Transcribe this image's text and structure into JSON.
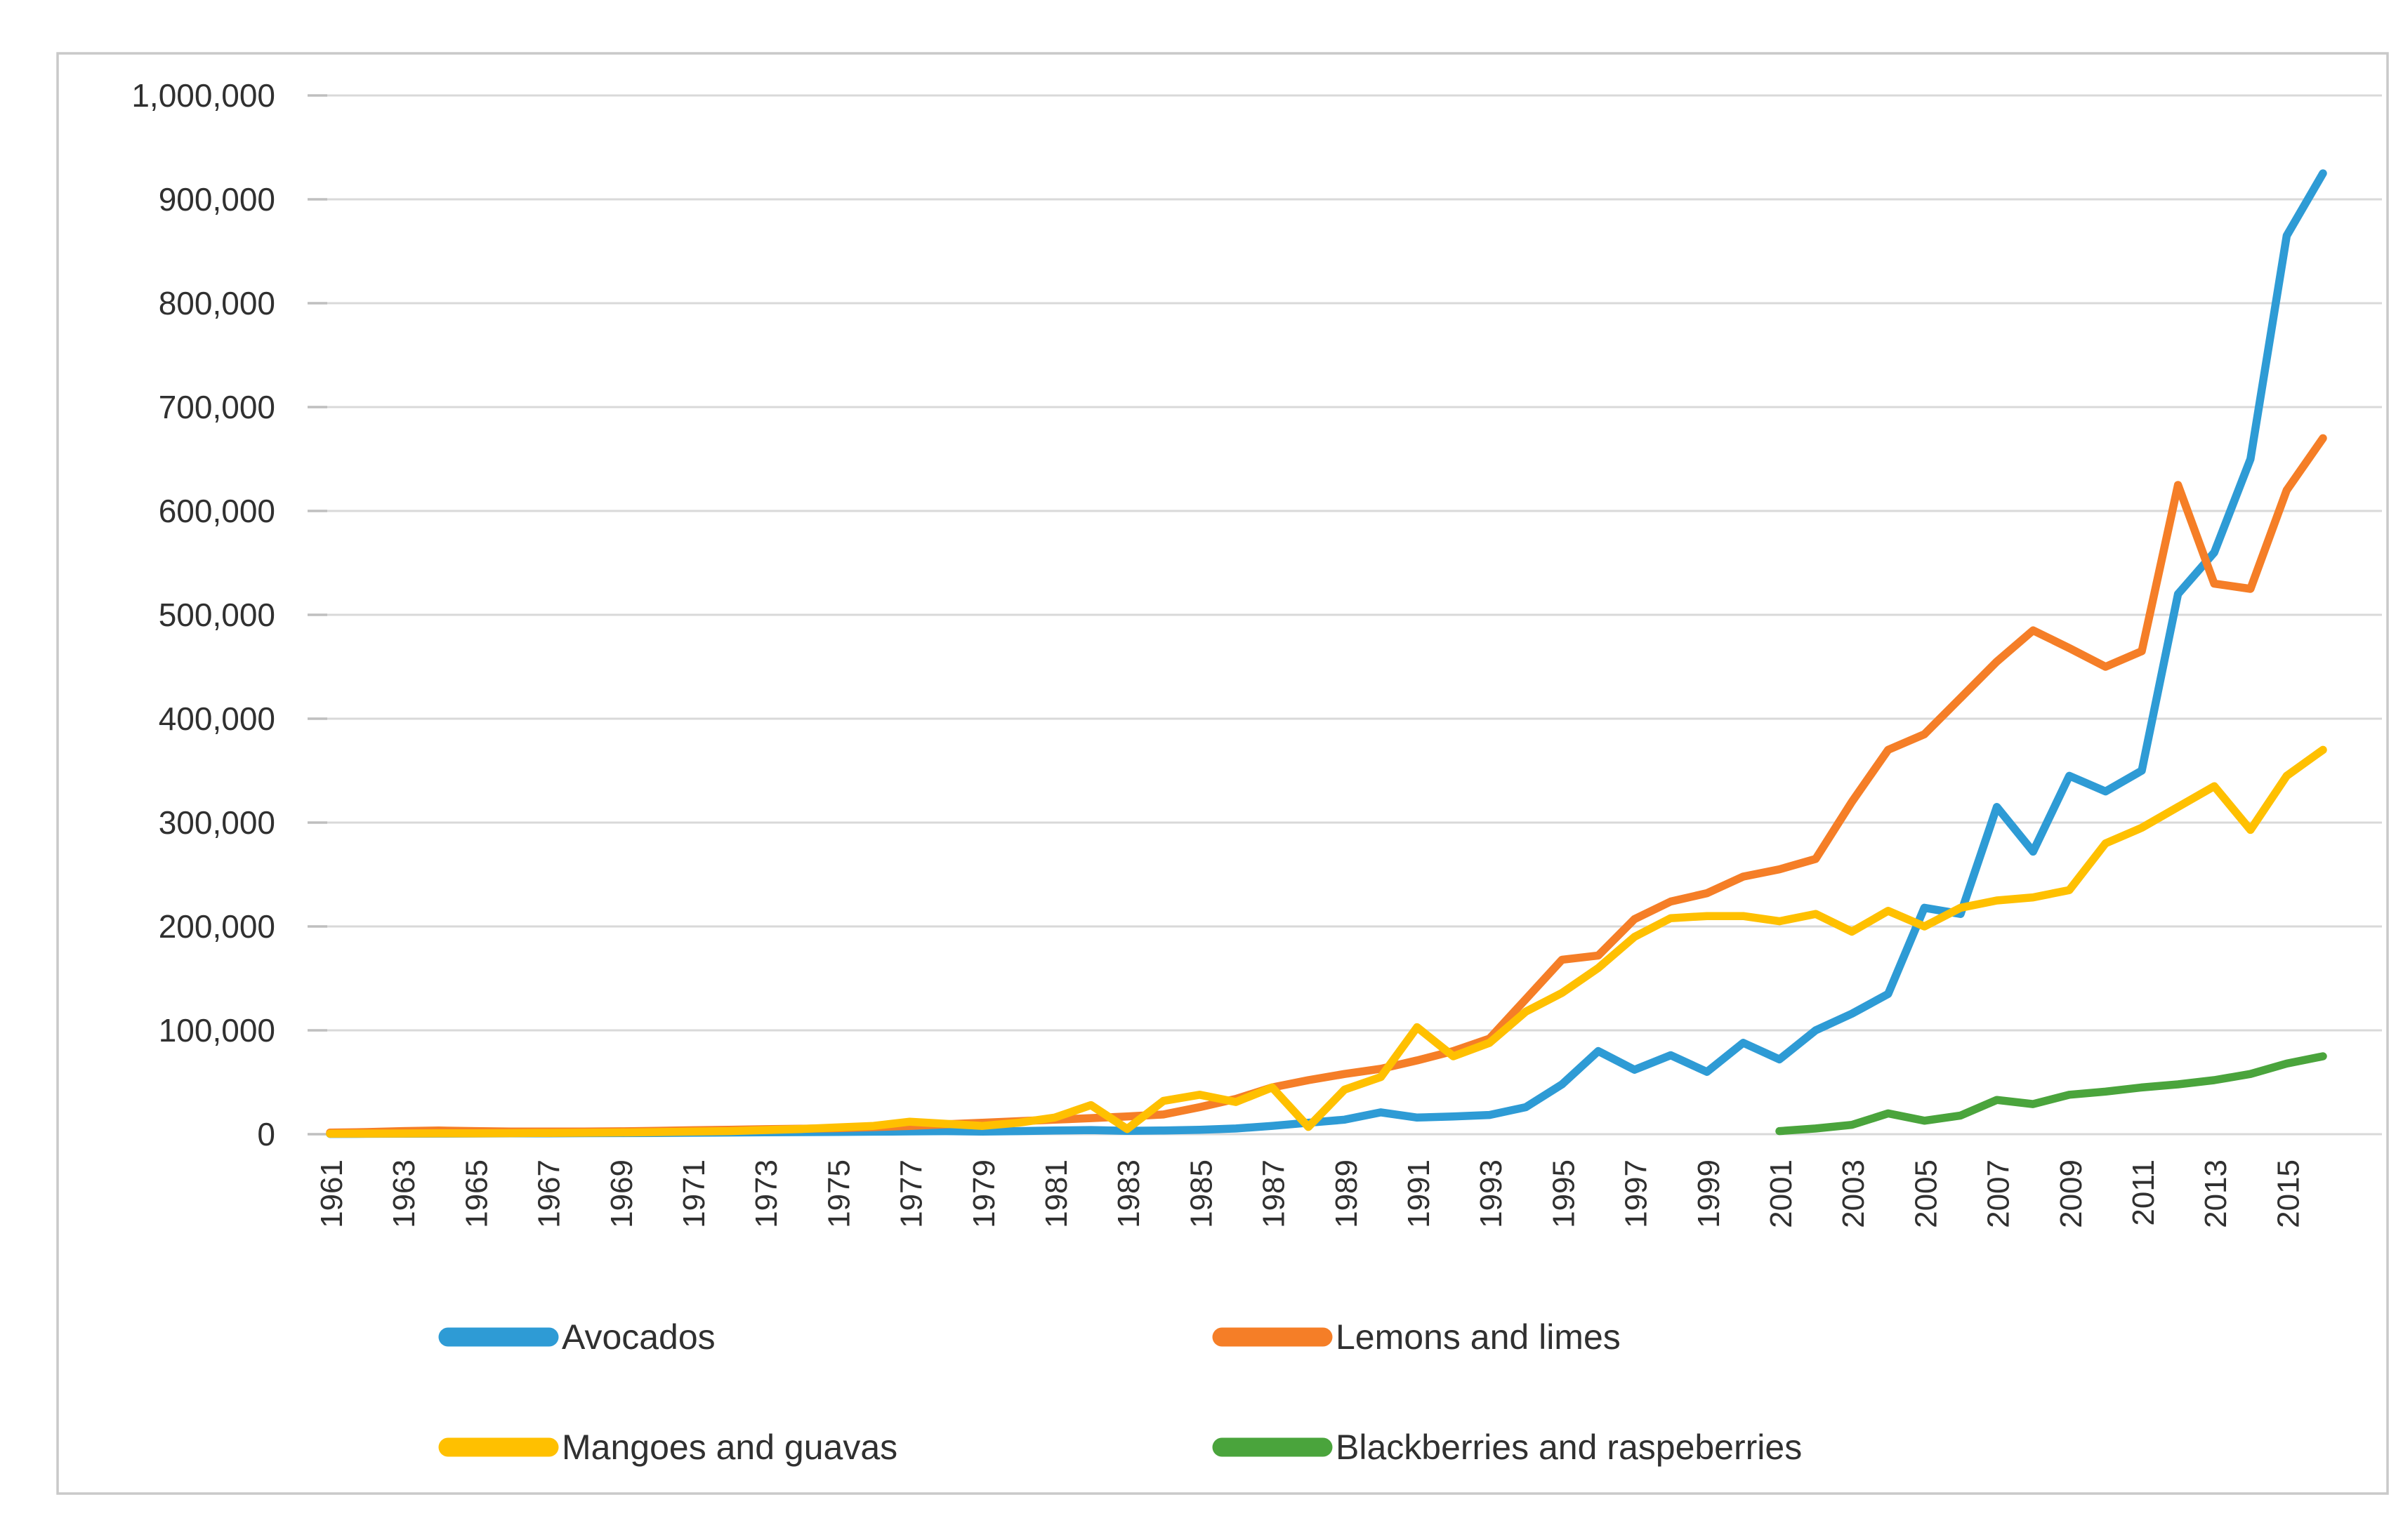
{
  "frame": {
    "border_color": "#c9c9c9",
    "background": "#ffffff"
  },
  "axis_style": {
    "grid_color": "#d9d9d9",
    "tick_color": "#bfbfbf",
    "label_color": "#303030"
  },
  "chart_data": {
    "type": "line",
    "title": "",
    "xlabel": "",
    "ylabel": "",
    "grid": true,
    "x": [
      1961,
      1962,
      1963,
      1964,
      1965,
      1966,
      1967,
      1968,
      1969,
      1970,
      1971,
      1972,
      1973,
      1974,
      1975,
      1976,
      1977,
      1978,
      1979,
      1980,
      1981,
      1982,
      1983,
      1984,
      1985,
      1986,
      1987,
      1988,
      1989,
      1990,
      1991,
      1992,
      1993,
      1994,
      1995,
      1996,
      1997,
      1998,
      1999,
      2000,
      2001,
      2002,
      2003,
      2004,
      2005,
      2006,
      2007,
      2008,
      2009,
      2010,
      2011,
      2012,
      2013,
      2014,
      2015,
      2016
    ],
    "x_tick_labels": [
      "1961",
      "1963",
      "1965",
      "1967",
      "1969",
      "1971",
      "1973",
      "1975",
      "1977",
      "1979",
      "1981",
      "1983",
      "1985",
      "1987",
      "1989",
      "1991",
      "1993",
      "1995",
      "1997",
      "1999",
      "2001",
      "2003",
      "2005",
      "2007",
      "2009",
      "2011",
      "2013",
      "2015"
    ],
    "y_axis": {
      "min": 0,
      "max": 1000000,
      "step": 100000,
      "tick_labels": [
        "1,000,000",
        "900,000",
        "800,000",
        "700,000",
        "600,000",
        "500,000",
        "400,000",
        "300,000",
        "200,000",
        "100,000",
        "0"
      ]
    },
    "legend": {
      "position": "bottom",
      "rows": [
        [
          "Avocados",
          "Lemons and limes"
        ],
        [
          "Mangoes and guavas",
          "Blackberries and raspeberries"
        ]
      ]
    },
    "series": [
      {
        "name": "Avocados",
        "color": "#2E9BD5",
        "values": [
          300,
          400,
          500,
          600,
          700,
          800,
          900,
          1000,
          1100,
          1200,
          1400,
          1600,
          1800,
          2000,
          2200,
          2400,
          2700,
          3000,
          2600,
          3000,
          3500,
          4000,
          3200,
          3600,
          4200,
          5500,
          8000,
          11000,
          14000,
          21000,
          16000,
          17000,
          18500,
          26000,
          48000,
          80000,
          62000,
          76000,
          60000,
          88000,
          72000,
          100000,
          116000,
          135000,
          218000,
          212000,
          315000,
          272000,
          345000,
          330000,
          350000,
          520000,
          560000,
          650000,
          865000,
          925000
        ]
      },
      {
        "name": "Lemons and limes",
        "color": "#F57E27",
        "values": [
          1500,
          2000,
          3000,
          3500,
          3000,
          2500,
          2500,
          2600,
          2800,
          3200,
          3800,
          4200,
          4800,
          5200,
          5800,
          6800,
          8000,
          9500,
          11000,
          12500,
          14000,
          15500,
          17000,
          19000,
          26000,
          34000,
          45000,
          52000,
          58000,
          63000,
          71000,
          80000,
          92000,
          130000,
          168000,
          172000,
          207000,
          224000,
          232000,
          248000,
          255000,
          265000,
          320000,
          370000,
          385000,
          420000,
          455000,
          485000,
          468000,
          450000,
          465000,
          625000,
          530000,
          525000,
          620000,
          670000
        ]
      },
      {
        "name": "Mangoes and guavas",
        "color": "#FFC000",
        "values": [
          500,
          600,
          700,
          800,
          900,
          1000,
          1200,
          1400,
          1700,
          2000,
          2500,
          3000,
          4000,
          5000,
          6500,
          8000,
          12000,
          10000,
          8000,
          11000,
          16000,
          28000,
          5000,
          32000,
          38000,
          31000,
          45000,
          7000,
          43000,
          55000,
          103000,
          75000,
          88000,
          118000,
          136000,
          160000,
          190000,
          208000,
          210000,
          210000,
          205000,
          212000,
          195000,
          215000,
          200000,
          218000,
          225000,
          228000,
          235000,
          280000,
          295000,
          315000,
          335000,
          293000,
          345000,
          370000
        ]
      },
      {
        "name": "Blackberries and raspeberries",
        "color": "#4AA43C",
        "values": [
          null,
          null,
          null,
          null,
          null,
          null,
          null,
          null,
          null,
          null,
          null,
          null,
          null,
          null,
          null,
          null,
          null,
          null,
          null,
          null,
          null,
          null,
          null,
          null,
          null,
          null,
          null,
          null,
          null,
          null,
          null,
          null,
          null,
          null,
          null,
          null,
          null,
          null,
          null,
          null,
          3000,
          5500,
          9000,
          20000,
          13000,
          18000,
          33000,
          29000,
          38000,
          41000,
          45000,
          48000,
          52000,
          58000,
          68000,
          75000
        ]
      }
    ]
  }
}
